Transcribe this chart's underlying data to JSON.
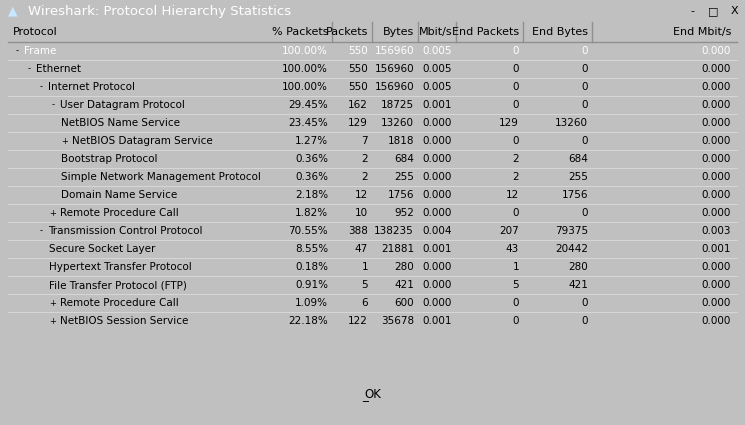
{
  "title": "Wireshark: Protocol Hierarchy Statistics",
  "columns": [
    "Protocol",
    "% Packets",
    "Packets",
    "Bytes",
    "Mbit/s",
    "End Packets",
    "End Bytes",
    "End Mbit/s"
  ],
  "rows": [
    {
      "indent": 0,
      "expand": "-",
      "label": "Frame",
      "pct": "100.00%",
      "pkts": "550",
      "bytes": "156960",
      "mbits": "0.005",
      "epkts": "0",
      "ebytes": "0",
      "embits": "0.000",
      "highlight": true
    },
    {
      "indent": 1,
      "expand": "-",
      "label": "Ethernet",
      "pct": "100.00%",
      "pkts": "550",
      "bytes": "156960",
      "mbits": "0.005",
      "epkts": "0",
      "ebytes": "0",
      "embits": "0.000",
      "highlight": false
    },
    {
      "indent": 2,
      "expand": "-",
      "label": "Internet Protocol",
      "pct": "100.00%",
      "pkts": "550",
      "bytes": "156960",
      "mbits": "0.005",
      "epkts": "0",
      "ebytes": "0",
      "embits": "0.000",
      "highlight": false
    },
    {
      "indent": 3,
      "expand": "-",
      "label": "User Datagram Protocol",
      "pct": "29.45%",
      "pkts": "162",
      "bytes": "18725",
      "mbits": "0.001",
      "epkts": "0",
      "ebytes": "0",
      "embits": "0.000",
      "highlight": false
    },
    {
      "indent": 4,
      "expand": "",
      "label": "NetBIOS Name Service",
      "pct": "23.45%",
      "pkts": "129",
      "bytes": "13260",
      "mbits": "0.000",
      "epkts": "129",
      "ebytes": "13260",
      "embits": "0.000",
      "highlight": false
    },
    {
      "indent": 4,
      "expand": "+",
      "label": "NetBIOS Datagram Service",
      "pct": "1.27%",
      "pkts": "7",
      "bytes": "1818",
      "mbits": "0.000",
      "epkts": "0",
      "ebytes": "0",
      "embits": "0.000",
      "highlight": false
    },
    {
      "indent": 4,
      "expand": "",
      "label": "Bootstrap Protocol",
      "pct": "0.36%",
      "pkts": "2",
      "bytes": "684",
      "mbits": "0.000",
      "epkts": "2",
      "ebytes": "684",
      "embits": "0.000",
      "highlight": false
    },
    {
      "indent": 4,
      "expand": "",
      "label": "Simple Network Management Protocol",
      "pct": "0.36%",
      "pkts": "2",
      "bytes": "255",
      "mbits": "0.000",
      "epkts": "2",
      "ebytes": "255",
      "embits": "0.000",
      "highlight": false
    },
    {
      "indent": 4,
      "expand": "",
      "label": "Domain Name Service",
      "pct": "2.18%",
      "pkts": "12",
      "bytes": "1756",
      "mbits": "0.000",
      "epkts": "12",
      "ebytes": "1756",
      "embits": "0.000",
      "highlight": false
    },
    {
      "indent": 3,
      "expand": "+",
      "label": "Remote Procedure Call",
      "pct": "1.82%",
      "pkts": "10",
      "bytes": "952",
      "mbits": "0.000",
      "epkts": "0",
      "ebytes": "0",
      "embits": "0.000",
      "highlight": false
    },
    {
      "indent": 2,
      "expand": "-",
      "label": "Transmission Control Protocol",
      "pct": "70.55%",
      "pkts": "388",
      "bytes": "138235",
      "mbits": "0.004",
      "epkts": "207",
      "ebytes": "79375",
      "embits": "0.003",
      "highlight": false
    },
    {
      "indent": 3,
      "expand": "",
      "label": "Secure Socket Layer",
      "pct": "8.55%",
      "pkts": "47",
      "bytes": "21881",
      "mbits": "0.001",
      "epkts": "43",
      "ebytes": "20442",
      "embits": "0.001",
      "highlight": false
    },
    {
      "indent": 3,
      "expand": "",
      "label": "Hypertext Transfer Protocol",
      "pct": "0.18%",
      "pkts": "1",
      "bytes": "280",
      "mbits": "0.000",
      "epkts": "1",
      "ebytes": "280",
      "embits": "0.000",
      "highlight": false
    },
    {
      "indent": 3,
      "expand": "",
      "label": "File Transfer Protocol (FTP)",
      "pct": "0.91%",
      "pkts": "5",
      "bytes": "421",
      "mbits": "0.000",
      "epkts": "5",
      "ebytes": "421",
      "embits": "0.000",
      "highlight": false
    },
    {
      "indent": 3,
      "expand": "+",
      "label": "Remote Procedure Call",
      "pct": "1.09%",
      "pkts": "6",
      "bytes": "600",
      "mbits": "0.000",
      "epkts": "0",
      "ebytes": "0",
      "embits": "0.000",
      "highlight": false
    },
    {
      "indent": 3,
      "expand": "+",
      "label": "NetBIOS Session Service",
      "pct": "22.18%",
      "pkts": "122",
      "bytes": "35678",
      "mbits": "0.001",
      "epkts": "0",
      "ebytes": "0",
      "embits": "0.000",
      "highlight": false
    }
  ],
  "bg_color": "#c0c0c0",
  "title_bg_grad_top": "#5a5a5a",
  "title_bg_grad_bot": "#2a2a2a",
  "title_text_color": "#ffffff",
  "header_bg_color": "#e8e8e0",
  "highlight_color": "#6b8cba",
  "highlight_text_color": "#ffffff",
  "row_bg_even": "#ffffff",
  "row_bg_odd": "#ffffff",
  "border_color": "#808080",
  "ok_button_label": "OK",
  "font_size_title": 9.5,
  "font_size_header": 8,
  "font_size_row": 7.5
}
